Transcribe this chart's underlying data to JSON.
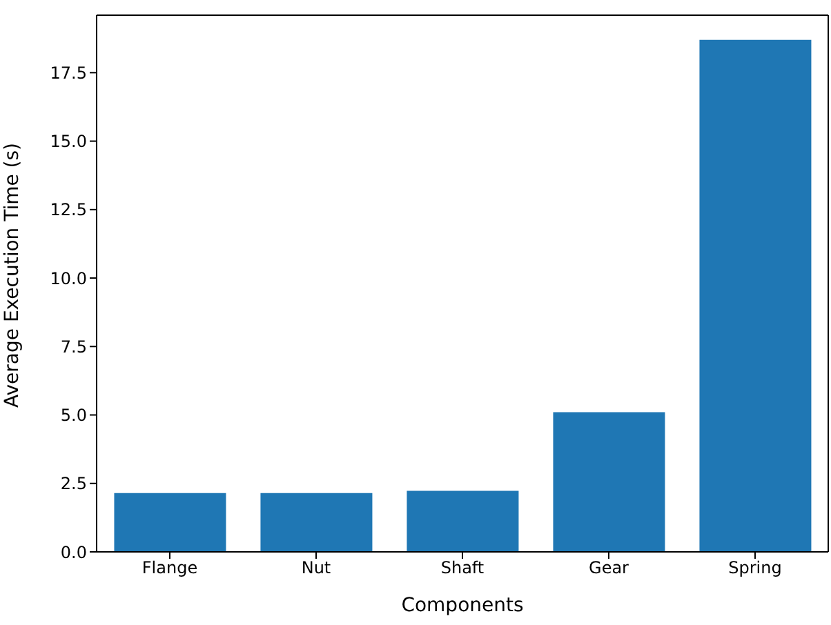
{
  "chart_data": {
    "type": "bar",
    "xlabel": "Components",
    "ylabel": "Average Execution Time (s)",
    "categories": [
      "Flange",
      "Nut",
      "Shaft",
      "Gear",
      "Spring"
    ],
    "values": [
      2.15,
      2.15,
      2.23,
      5.1,
      18.7
    ],
    "color": "#1f77b4",
    "ylim": [
      0,
      19.6
    ],
    "yticks": [
      {
        "value": 0,
        "label": "0.0"
      },
      2.5,
      {
        "value": 5,
        "label": "5.0"
      },
      7.5,
      {
        "value": 10,
        "label": "10.0"
      },
      12.5,
      {
        "value": 15,
        "label": "15.0"
      },
      17.5
    ],
    "grid": false,
    "legend": false
  }
}
